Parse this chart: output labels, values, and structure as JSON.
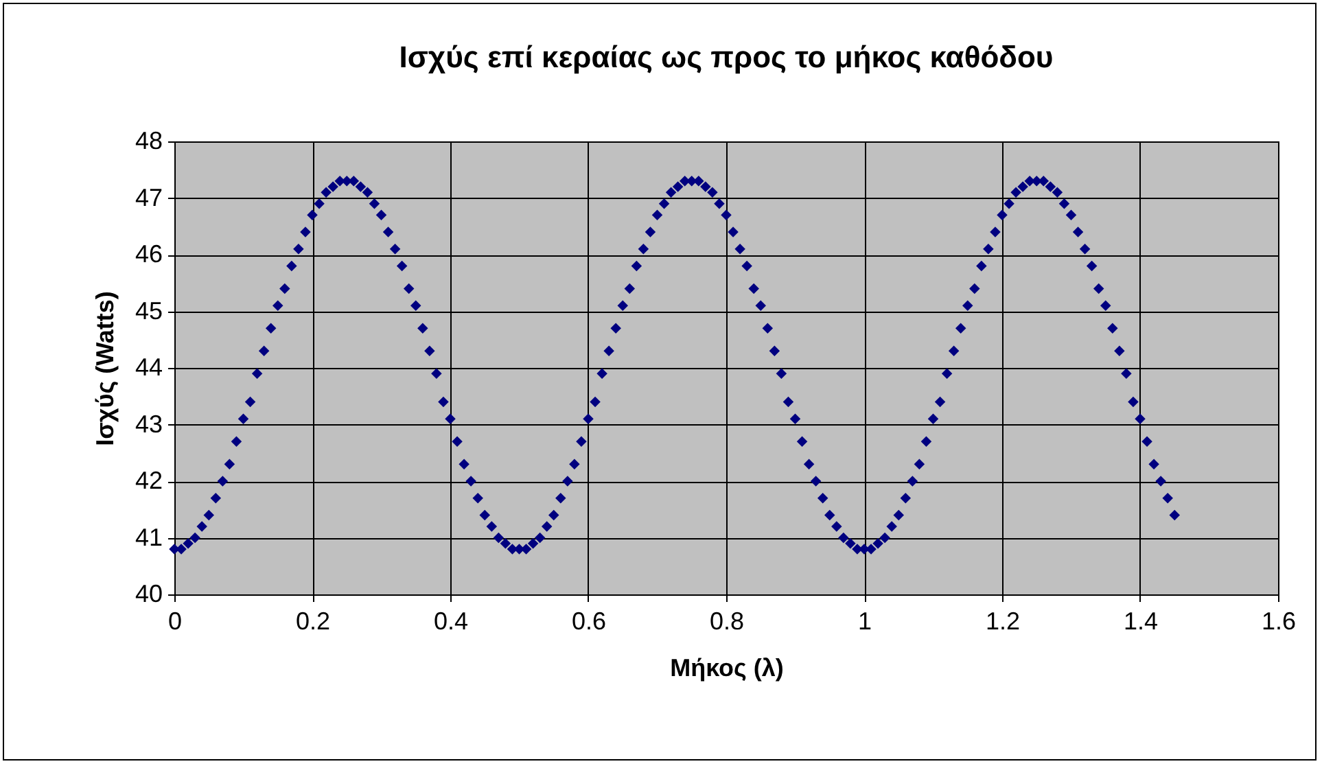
{
  "chart_data": {
    "type": "scatter",
    "title": "Ισχύς επί κεραίας ως προς το μήκος καθόδου",
    "xlabel": "Μήκος (λ)",
    "ylabel": "Ισχύς (Watts)",
    "x": [
      0,
      0.01,
      0.02,
      0.03,
      0.04,
      0.05,
      0.06,
      0.07,
      0.08,
      0.09,
      0.1,
      0.11,
      0.12,
      0.13,
      0.14,
      0.15,
      0.16,
      0.17,
      0.18,
      0.19,
      0.2,
      0.21,
      0.22,
      0.23,
      0.24,
      0.25,
      0.26,
      0.27,
      0.28,
      0.29,
      0.3,
      0.31,
      0.32,
      0.33,
      0.34,
      0.35,
      0.36,
      0.37,
      0.38,
      0.39,
      0.4,
      0.41,
      0.42,
      0.43,
      0.44,
      0.45,
      0.46,
      0.47,
      0.48,
      0.49,
      0.5,
      0.51,
      0.52,
      0.53,
      0.54,
      0.55,
      0.56,
      0.57,
      0.58,
      0.59,
      0.6,
      0.61,
      0.62,
      0.63,
      0.64,
      0.65,
      0.66,
      0.67,
      0.68,
      0.69,
      0.7,
      0.71,
      0.72,
      0.73,
      0.74,
      0.75,
      0.76,
      0.77,
      0.78,
      0.79,
      0.8,
      0.81,
      0.82,
      0.83,
      0.84,
      0.85,
      0.86,
      0.87,
      0.88,
      0.89,
      0.9,
      0.91,
      0.92,
      0.93,
      0.94,
      0.95,
      0.96,
      0.97,
      0.98,
      0.99,
      1,
      1.01,
      1.02,
      1.03,
      1.04,
      1.05,
      1.06,
      1.07,
      1.08,
      1.09,
      1.1,
      1.11,
      1.12,
      1.13,
      1.14,
      1.15,
      1.16,
      1.17,
      1.18,
      1.19,
      1.2,
      1.21,
      1.22,
      1.23,
      1.24,
      1.25,
      1.26,
      1.27,
      1.28,
      1.29,
      1.3,
      1.31,
      1.32,
      1.33,
      1.34,
      1.35,
      1.36,
      1.37,
      1.38,
      1.39,
      1.4,
      1.41,
      1.42,
      1.43,
      1.44,
      1.45
    ],
    "series": [
      {
        "color": "#000080",
        "values": [
          40.8,
          40.8,
          40.9,
          41.0,
          41.2,
          41.4,
          41.7,
          42.0,
          42.3,
          42.7,
          43.1,
          43.4,
          43.9,
          44.3,
          44.7,
          45.1,
          45.4,
          45.8,
          46.1,
          46.4,
          46.7,
          46.9,
          47.1,
          47.2,
          47.3,
          47.3,
          47.3,
          47.2,
          47.1,
          46.9,
          46.7,
          46.4,
          46.1,
          45.8,
          45.4,
          45.1,
          44.7,
          44.3,
          43.9,
          43.4,
          43.1,
          42.7,
          42.3,
          42.0,
          41.7,
          41.4,
          41.2,
          41.0,
          40.9,
          40.8,
          40.8,
          40.8,
          40.9,
          41.0,
          41.2,
          41.4,
          41.7,
          42.0,
          42.3,
          42.7,
          43.1,
          43.4,
          43.9,
          44.3,
          44.7,
          45.1,
          45.4,
          45.8,
          46.1,
          46.4,
          46.7,
          46.9,
          47.1,
          47.2,
          47.3,
          47.3,
          47.3,
          47.2,
          47.1,
          46.9,
          46.7,
          46.4,
          46.1,
          45.8,
          45.4,
          45.1,
          44.7,
          44.3,
          43.9,
          43.4,
          43.1,
          42.7,
          42.3,
          42.0,
          41.7,
          41.4,
          41.2,
          41.0,
          40.9,
          40.8,
          40.8,
          40.8,
          40.9,
          41.0,
          41.2,
          41.4,
          41.7,
          42.0,
          42.3,
          42.7,
          43.1,
          43.4,
          43.9,
          44.3,
          44.7,
          45.1,
          45.4,
          45.8,
          46.1,
          46.4,
          46.7,
          46.9,
          47.1,
          47.2,
          47.3,
          47.3,
          47.3,
          47.2,
          47.1,
          46.9,
          46.7,
          46.4,
          46.1,
          45.8,
          45.4,
          45.1,
          44.7,
          44.3,
          43.9,
          43.4,
          43.1,
          42.7,
          42.3,
          42.0,
          41.7,
          41.4
        ]
      }
    ],
    "xlim": [
      0,
      1.6
    ],
    "xticks": [
      0,
      0.2,
      0.4,
      0.6,
      0.8,
      1,
      1.2,
      1.4,
      1.6
    ],
    "ylim": [
      40,
      48
    ],
    "yticks": [
      40,
      41,
      42,
      43,
      44,
      45,
      46,
      47,
      48
    ],
    "grid": true,
    "marker": "diamond",
    "legend": false
  }
}
